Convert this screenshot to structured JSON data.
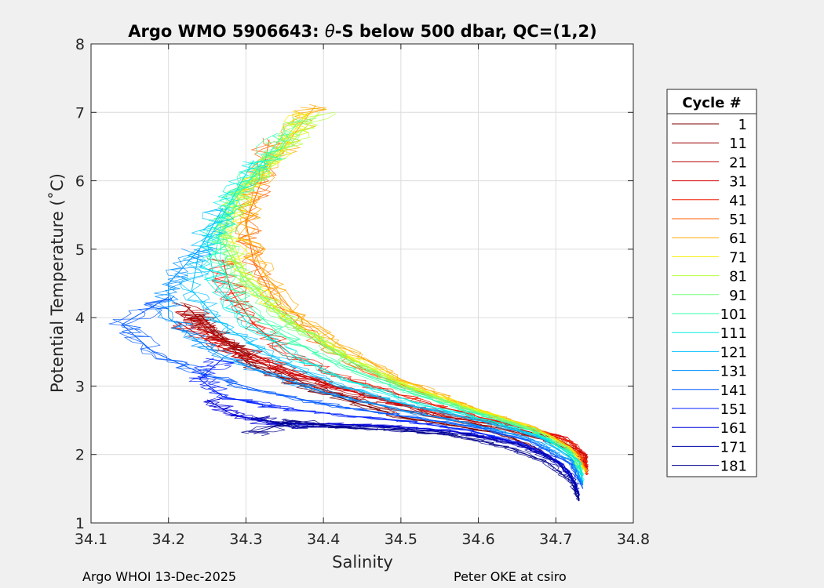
{
  "chart_data": {
    "type": "line",
    "title_prefix": "Argo WMO 5906643: ",
    "title_theta": "θ",
    "title_suffix": "-S below 500 dbar,  QC=(1,2)",
    "xlabel": "Salinity",
    "ylabel": "Potential Temperature (˚C)",
    "xlim": [
      34.1,
      34.8
    ],
    "ylim": [
      1,
      8
    ],
    "xticks": [
      "34.1",
      "34.2",
      "34.3",
      "34.4",
      "34.5",
      "34.6",
      "34.7",
      "34.8"
    ],
    "yticks": [
      "1",
      "2",
      "3",
      "4",
      "5",
      "6",
      "7",
      "8"
    ],
    "grid": true,
    "colormap": "jet",
    "legend_placement": "right, outside plot",
    "legend": {
      "title": "Cycle #",
      "entries": [
        {
          "label": "1",
          "color": "#7f0000"
        },
        {
          "label": "11",
          "color": "#9a0000"
        },
        {
          "label": "21",
          "color": "#b80000"
        },
        {
          "label": "31",
          "color": "#d60000"
        },
        {
          "label": "41",
          "color": "#f01800"
        },
        {
          "label": "51",
          "color": "#ff6000"
        },
        {
          "label": "61",
          "color": "#ffa800"
        },
        {
          "label": "71",
          "color": "#f4f000"
        },
        {
          "label": "81",
          "color": "#b4ff3c"
        },
        {
          "label": "91",
          "color": "#74ff7c"
        },
        {
          "label": "101",
          "color": "#34ffa8"
        },
        {
          "label": "111",
          "color": "#00f0e0"
        },
        {
          "label": "121",
          "color": "#00c0ff"
        },
        {
          "label": "131",
          "color": "#0090ff"
        },
        {
          "label": "141",
          "color": "#0058ff"
        },
        {
          "label": "151",
          "color": "#0020ff"
        },
        {
          "label": "161",
          "color": "#0000d8"
        },
        {
          "label": "171",
          "color": "#0000a8"
        },
        {
          "label": "181",
          "color": "#00008c"
        }
      ]
    },
    "series": [
      {
        "name": "cycle 1",
        "color": "#7f0000",
        "points": [
          [
            34.24,
            4.05
          ],
          [
            34.27,
            3.7
          ],
          [
            34.3,
            3.35
          ],
          [
            34.36,
            3.05
          ],
          [
            34.43,
            2.8
          ],
          [
            34.5,
            2.55
          ],
          [
            34.57,
            2.42
          ],
          [
            34.63,
            2.3
          ],
          [
            34.67,
            2.12
          ],
          [
            34.7,
            1.9
          ]
        ]
      },
      {
        "name": "cycle 11",
        "color": "#9a0000",
        "points": [
          [
            34.22,
            4.2
          ],
          [
            34.26,
            3.75
          ],
          [
            34.31,
            3.38
          ],
          [
            34.38,
            3.02
          ],
          [
            34.46,
            2.75
          ],
          [
            34.55,
            2.53
          ],
          [
            34.63,
            2.38
          ],
          [
            34.69,
            2.2
          ],
          [
            34.73,
            2.0
          ],
          [
            34.74,
            1.8
          ]
        ]
      },
      {
        "name": "cycle 21",
        "color": "#b80000",
        "points": [
          [
            34.23,
            4.1
          ],
          [
            34.25,
            3.8
          ],
          [
            34.32,
            3.4
          ],
          [
            34.4,
            3.05
          ],
          [
            34.48,
            2.78
          ],
          [
            34.56,
            2.55
          ],
          [
            34.64,
            2.4
          ],
          [
            34.7,
            2.24
          ],
          [
            34.735,
            2.02
          ],
          [
            34.74,
            1.75
          ]
        ]
      },
      {
        "name": "cycle 31",
        "color": "#d60000",
        "points": [
          [
            34.21,
            3.95
          ],
          [
            34.26,
            3.6
          ],
          [
            34.33,
            3.3
          ],
          [
            34.41,
            3.0
          ],
          [
            34.49,
            2.76
          ],
          [
            34.58,
            2.55
          ],
          [
            34.65,
            2.42
          ],
          [
            34.71,
            2.25
          ],
          [
            34.738,
            2.0
          ],
          [
            34.74,
            1.72
          ]
        ]
      },
      {
        "name": "cycle 41",
        "color": "#f01800",
        "points": [
          [
            34.27,
            4.85
          ],
          [
            34.28,
            4.4
          ],
          [
            34.31,
            3.9
          ],
          [
            34.36,
            3.45
          ],
          [
            34.43,
            3.1
          ],
          [
            34.52,
            2.8
          ],
          [
            34.6,
            2.55
          ],
          [
            34.67,
            2.38
          ],
          [
            34.72,
            2.18
          ],
          [
            34.738,
            1.9
          ],
          [
            34.74,
            1.7
          ]
        ]
      },
      {
        "name": "cycle 51",
        "color": "#ff6000",
        "points": [
          [
            34.33,
            6.6
          ],
          [
            34.32,
            6.0
          ],
          [
            34.3,
            5.4
          ],
          [
            34.31,
            4.8
          ],
          [
            34.34,
            4.2
          ],
          [
            34.39,
            3.65
          ],
          [
            34.46,
            3.2
          ],
          [
            34.54,
            2.85
          ],
          [
            34.62,
            2.55
          ],
          [
            34.69,
            2.3
          ],
          [
            34.73,
            2.0
          ],
          [
            34.74,
            1.72
          ]
        ]
      },
      {
        "name": "cycle 61",
        "color": "#ffa800",
        "points": [
          [
            34.39,
            7.1
          ],
          [
            34.35,
            6.5
          ],
          [
            34.31,
            5.9
          ],
          [
            34.3,
            5.3
          ],
          [
            34.32,
            4.7
          ],
          [
            34.36,
            4.1
          ],
          [
            34.42,
            3.6
          ],
          [
            34.5,
            3.1
          ],
          [
            34.59,
            2.7
          ],
          [
            34.67,
            2.4
          ],
          [
            34.72,
            2.1
          ],
          [
            34.74,
            1.75
          ]
        ]
      },
      {
        "name": "cycle 71",
        "color": "#f4f000",
        "points": [
          [
            34.38,
            7.0
          ],
          [
            34.34,
            6.4
          ],
          [
            34.29,
            5.8
          ],
          [
            34.28,
            5.2
          ],
          [
            34.3,
            4.6
          ],
          [
            34.35,
            4.0
          ],
          [
            34.42,
            3.5
          ],
          [
            34.5,
            3.05
          ],
          [
            34.59,
            2.68
          ],
          [
            34.67,
            2.4
          ],
          [
            34.72,
            2.08
          ],
          [
            34.738,
            1.74
          ]
        ]
      },
      {
        "name": "cycle 81",
        "color": "#b4ff3c",
        "points": [
          [
            34.395,
            7.0
          ],
          [
            34.35,
            6.45
          ],
          [
            34.3,
            5.9
          ],
          [
            34.27,
            5.3
          ],
          [
            34.29,
            4.7
          ],
          [
            34.34,
            4.1
          ],
          [
            34.41,
            3.55
          ],
          [
            34.49,
            3.08
          ],
          [
            34.58,
            2.7
          ],
          [
            34.66,
            2.4
          ],
          [
            34.71,
            2.08
          ],
          [
            34.735,
            1.72
          ]
        ]
      },
      {
        "name": "cycle 91",
        "color": "#74ff7c",
        "points": [
          [
            34.37,
            6.9
          ],
          [
            34.33,
            6.3
          ],
          [
            34.28,
            5.7
          ],
          [
            34.27,
            5.1
          ],
          [
            34.3,
            4.5
          ],
          [
            34.35,
            3.95
          ],
          [
            34.42,
            3.45
          ],
          [
            34.5,
            3.0
          ],
          [
            34.59,
            2.65
          ],
          [
            34.67,
            2.38
          ],
          [
            34.72,
            2.05
          ],
          [
            34.735,
            1.7
          ]
        ]
      },
      {
        "name": "cycle 101",
        "color": "#34ffa8",
        "points": [
          [
            34.35,
            6.7
          ],
          [
            34.31,
            6.1
          ],
          [
            34.27,
            5.5
          ],
          [
            34.26,
            4.9
          ],
          [
            34.29,
            4.3
          ],
          [
            34.34,
            3.8
          ],
          [
            34.41,
            3.35
          ],
          [
            34.5,
            2.95
          ],
          [
            34.59,
            2.62
          ],
          [
            34.67,
            2.35
          ],
          [
            34.72,
            2.02
          ],
          [
            34.735,
            1.68
          ]
        ]
      },
      {
        "name": "cycle 111",
        "color": "#00f0e0",
        "points": [
          [
            34.31,
            6.3
          ],
          [
            34.28,
            5.7
          ],
          [
            34.25,
            5.1
          ],
          [
            34.26,
            4.5
          ],
          [
            34.3,
            3.95
          ],
          [
            34.36,
            3.45
          ],
          [
            34.44,
            3.05
          ],
          [
            34.53,
            2.72
          ],
          [
            34.62,
            2.48
          ],
          [
            34.69,
            2.22
          ],
          [
            34.73,
            1.9
          ],
          [
            34.735,
            1.6
          ]
        ]
      },
      {
        "name": "cycle 121",
        "color": "#00c0ff",
        "points": [
          [
            34.27,
            5.6
          ],
          [
            34.24,
            5.0
          ],
          [
            34.23,
            4.4
          ],
          [
            34.27,
            3.9
          ],
          [
            34.33,
            3.45
          ],
          [
            34.41,
            3.05
          ],
          [
            34.5,
            2.75
          ],
          [
            34.6,
            2.5
          ],
          [
            34.68,
            2.25
          ],
          [
            34.72,
            1.95
          ],
          [
            34.735,
            1.58
          ]
        ]
      },
      {
        "name": "cycle 131",
        "color": "#0090ff",
        "points": [
          [
            34.24,
            5.0
          ],
          [
            34.2,
            4.5
          ],
          [
            34.2,
            4.0
          ],
          [
            34.25,
            3.55
          ],
          [
            34.32,
            3.2
          ],
          [
            34.41,
            2.88
          ],
          [
            34.5,
            2.65
          ],
          [
            34.59,
            2.45
          ],
          [
            34.67,
            2.22
          ],
          [
            34.72,
            1.9
          ],
          [
            34.735,
            1.55
          ]
        ]
      },
      {
        "name": "cycle 141",
        "color": "#0058ff",
        "points": [
          [
            34.2,
            4.3
          ],
          [
            34.14,
            3.9
          ],
          [
            34.18,
            3.5
          ],
          [
            34.25,
            3.15
          ],
          [
            34.33,
            2.9
          ],
          [
            34.42,
            2.7
          ],
          [
            34.51,
            2.55
          ],
          [
            34.6,
            2.4
          ],
          [
            34.67,
            2.18
          ],
          [
            34.72,
            1.85
          ],
          [
            34.735,
            1.5
          ]
        ]
      },
      {
        "name": "cycle 151",
        "color": "#0020ff",
        "points": [
          [
            34.27,
            3.4
          ],
          [
            34.24,
            3.1
          ],
          [
            34.27,
            2.85
          ],
          [
            34.33,
            2.7
          ],
          [
            34.42,
            2.58
          ],
          [
            34.51,
            2.48
          ],
          [
            34.59,
            2.35
          ],
          [
            34.66,
            2.15
          ],
          [
            34.71,
            1.85
          ],
          [
            34.73,
            1.45
          ]
        ]
      },
      {
        "name": "cycle 161",
        "color": "#0000d8",
        "points": [
          [
            34.25,
            2.8
          ],
          [
            34.28,
            2.6
          ],
          [
            34.33,
            2.45
          ],
          [
            34.4,
            2.45
          ],
          [
            34.48,
            2.42
          ],
          [
            34.56,
            2.35
          ],
          [
            34.63,
            2.22
          ],
          [
            34.69,
            2.0
          ],
          [
            34.72,
            1.72
          ],
          [
            34.73,
            1.4
          ]
        ]
      },
      {
        "name": "cycle 171",
        "color": "#0000a8",
        "points": [
          [
            34.31,
            2.55
          ],
          [
            34.36,
            2.4
          ],
          [
            34.43,
            2.42
          ],
          [
            34.5,
            2.38
          ],
          [
            34.58,
            2.3
          ],
          [
            34.65,
            2.15
          ],
          [
            34.7,
            1.9
          ],
          [
            34.725,
            1.6
          ],
          [
            34.73,
            1.35
          ]
        ]
      },
      {
        "name": "cycle 181",
        "color": "#00008c",
        "points": [
          [
            34.31,
            2.3
          ],
          [
            34.36,
            2.5
          ],
          [
            34.42,
            2.4
          ],
          [
            34.5,
            2.35
          ],
          [
            34.57,
            2.28
          ],
          [
            34.64,
            2.1
          ],
          [
            34.69,
            1.88
          ],
          [
            34.72,
            1.6
          ],
          [
            34.73,
            1.32
          ]
        ]
      }
    ]
  },
  "footer": {
    "left": "Argo WHOI 13-Dec-2025",
    "right": "Peter OKE at csiro"
  }
}
